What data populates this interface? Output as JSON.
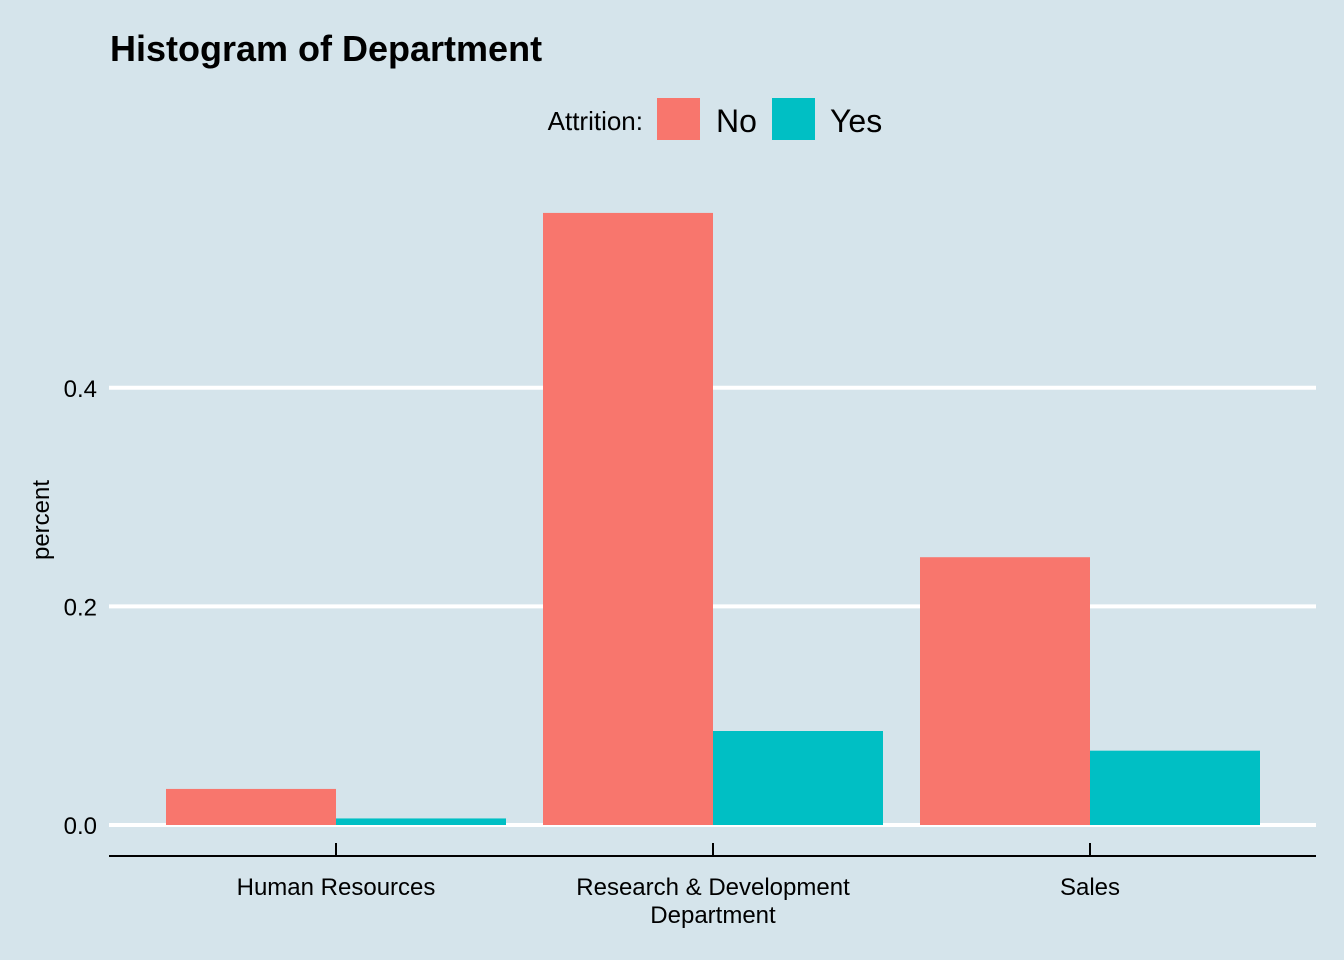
{
  "chart_data": {
    "type": "bar",
    "title": "Histogram of Department",
    "xlabel": "Department",
    "ylabel": "percent",
    "categories": [
      "Human Resources",
      "Research & Development",
      "Sales"
    ],
    "legend": {
      "title": "Attrition:",
      "position": "top"
    },
    "series": [
      {
        "name": "No",
        "color": "#f8766d",
        "values": [
          0.033,
          0.56,
          0.245
        ]
      },
      {
        "name": "Yes",
        "color": "#00bfc4",
        "values": [
          0.006,
          0.086,
          0.068
        ]
      }
    ],
    "ylim": [
      0,
      0.6
    ],
    "yticks": [
      0.0,
      0.2,
      0.4
    ],
    "ytick_labels": [
      "0.0",
      "0.2",
      "0.4"
    ],
    "grid": true
  }
}
